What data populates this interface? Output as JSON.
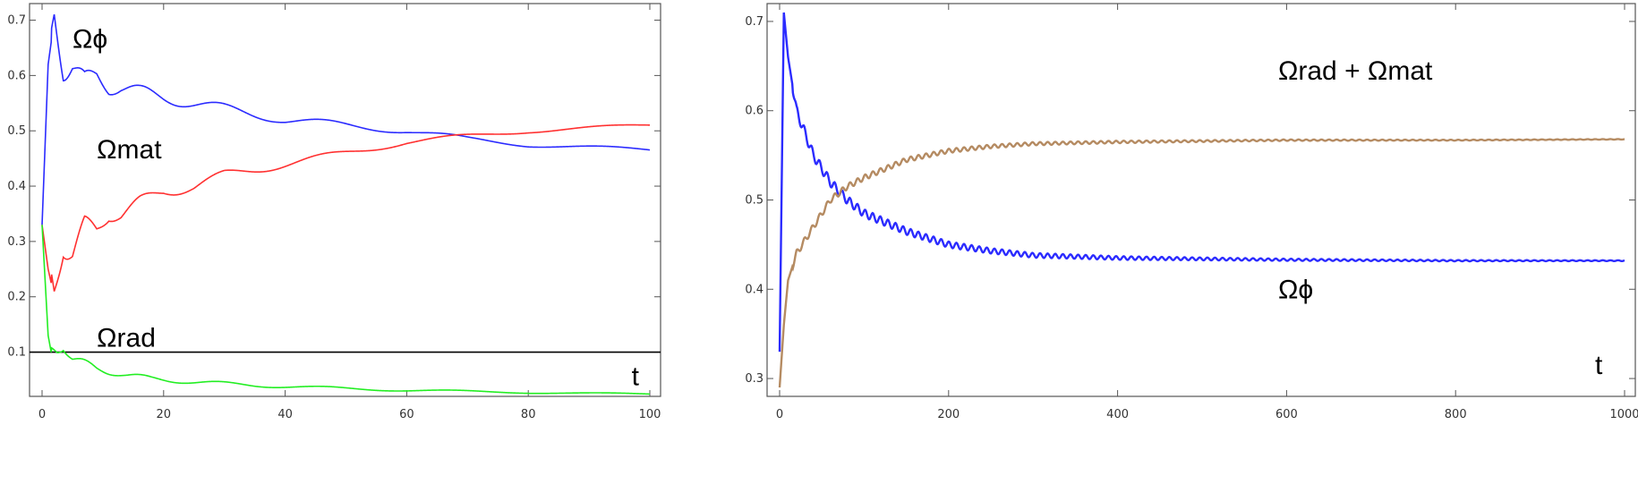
{
  "chart_data": [
    {
      "type": "line",
      "grid": false,
      "xlim": [
        0,
        100
      ],
      "ylim": [
        0.02,
        0.73
      ],
      "x_ticks": [
        0,
        20,
        40,
        60,
        80,
        100
      ],
      "y_ticks": [
        0.1,
        0.2,
        0.3,
        0.4,
        0.5,
        0.6,
        0.7
      ],
      "x_tick_labels": [
        "0",
        "20",
        "40",
        "60",
        "80",
        "100"
      ],
      "y_tick_labels": [
        "0.1",
        "0.2",
        "0.3",
        "0.4",
        "0.5",
        "0.6",
        "0.7"
      ],
      "hline": 0.1,
      "series": [
        {
          "label": "Ωϕ",
          "color": "#2b2bff",
          "x": [
            0,
            1,
            2,
            3.5,
            5,
            7,
            9,
            11,
            13,
            16,
            20,
            25,
            30,
            40,
            50,
            60,
            70,
            80,
            90,
            100
          ],
          "y": [
            0.33,
            0.62,
            0.7,
            0.61,
            0.62,
            0.59,
            0.6,
            0.58,
            0.58,
            0.57,
            0.56,
            0.55,
            0.54,
            0.52,
            0.51,
            0.5,
            0.485,
            0.475,
            0.47,
            0.465
          ]
        },
        {
          "label": "Ωmat",
          "color": "#ff3030",
          "x": [
            0,
            1,
            2,
            3.5,
            5,
            7,
            9,
            11,
            13,
            16,
            20,
            25,
            30,
            40,
            50,
            60,
            70,
            80,
            90,
            100
          ],
          "y": [
            0.33,
            0.25,
            0.2,
            0.29,
            0.28,
            0.33,
            0.32,
            0.35,
            0.35,
            0.37,
            0.39,
            0.4,
            0.42,
            0.44,
            0.46,
            0.48,
            0.49,
            0.5,
            0.505,
            0.51
          ]
        },
        {
          "label": "Ωrad",
          "color": "#22ee22",
          "x": [
            0,
            1,
            1.5,
            2.5,
            3.5,
            5,
            7,
            9,
            11,
            14,
            18,
            25,
            35,
            45,
            60,
            80,
            100
          ],
          "y": [
            0.33,
            0.13,
            0.1,
            0.1,
            0.11,
            0.09,
            0.08,
            0.07,
            0.065,
            0.058,
            0.052,
            0.046,
            0.04,
            0.036,
            0.031,
            0.027,
            0.024
          ]
        }
      ],
      "labels": [
        {
          "text": "Ωϕ",
          "x": 5,
          "y": 0.65
        },
        {
          "text": "Ωmat",
          "x": 9,
          "y": 0.45
        },
        {
          "text": "Ωrad",
          "x": 9,
          "y": 0.11
        },
        {
          "text": "t",
          "x": 97,
          "y": 0.04
        }
      ]
    },
    {
      "type": "line",
      "grid": false,
      "xlim": [
        0,
        1000
      ],
      "ylim": [
        0.28,
        0.72
      ],
      "x_ticks": [
        0,
        200,
        400,
        600,
        800,
        1000
      ],
      "y_ticks": [
        0.3,
        0.4,
        0.5,
        0.6,
        0.7
      ],
      "x_tick_labels": [
        "0",
        "200",
        "400",
        "600",
        "800",
        "1000"
      ],
      "y_tick_labels": [
        "0.3",
        "0.4",
        "0.5",
        "0.6",
        "0.7"
      ],
      "series": [
        {
          "label": "Ωϕ",
          "color": "#2b2bff",
          "x": [
            0,
            5,
            10,
            20,
            40,
            60,
            80,
            100,
            150,
            200,
            250,
            300,
            400,
            500,
            600,
            800,
            1000
          ],
          "y": [
            0.33,
            0.71,
            0.66,
            0.6,
            0.55,
            0.52,
            0.5,
            0.485,
            0.465,
            0.45,
            0.443,
            0.438,
            0.435,
            0.434,
            0.433,
            0.432,
            0.432
          ]
        },
        {
          "label": "Ωrad + Ωmat",
          "color": "#b58b62",
          "x": [
            0,
            5,
            10,
            20,
            40,
            60,
            80,
            100,
            150,
            200,
            250,
            300,
            400,
            500,
            600,
            800,
            1000
          ],
          "y": [
            0.29,
            0.36,
            0.41,
            0.44,
            0.47,
            0.5,
            0.515,
            0.525,
            0.545,
            0.555,
            0.56,
            0.563,
            0.565,
            0.566,
            0.567,
            0.567,
            0.568
          ]
        }
      ],
      "labels": [
        {
          "text": "Ωrad + Ωmat",
          "x": 590,
          "y": 0.635
        },
        {
          "text": "Ωϕ",
          "x": 590,
          "y": 0.39
        },
        {
          "text": "t",
          "x": 965,
          "y": 0.305
        }
      ]
    }
  ]
}
